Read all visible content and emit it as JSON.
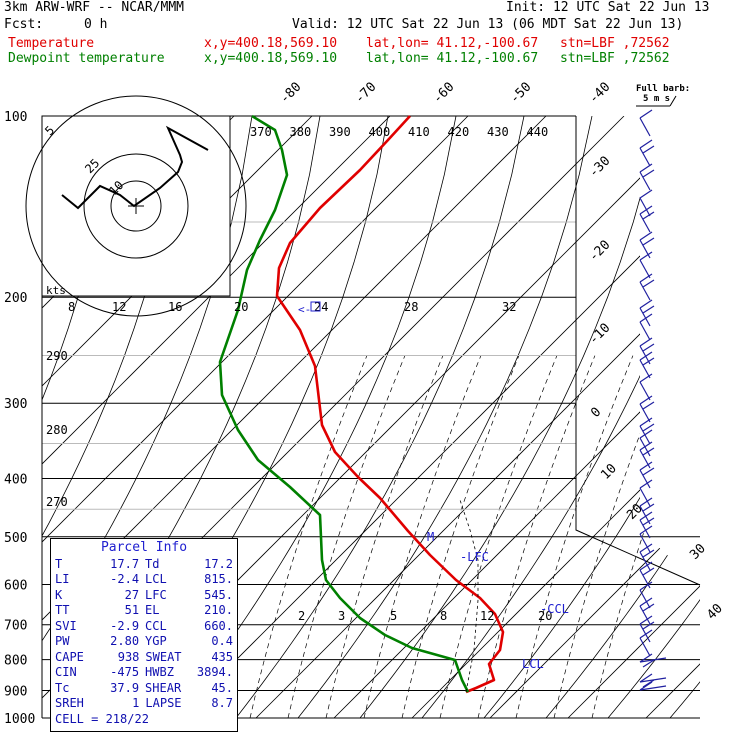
{
  "header": {
    "model": "3km ARW-WRF -- NCAR/MMM",
    "init": "Init: 12 UTC Sat 22 Jun 13",
    "fcst_label": "Fcst:",
    "fcst_value": "0 h",
    "valid": "Valid: 12 UTC Sat 22 Jun 13 (06 MDT Sat 22 Jun 13)",
    "temp_line": {
      "name": "Temperature",
      "xy": "x,y=400.18,569.10",
      "latlon": "lat,lon= 41.12,-100.67",
      "stn": "stn=LBF ,72562"
    },
    "dew_line": {
      "name": "Dewpoint temperature",
      "xy": "x,y=400.18,569.10",
      "latlon": "lat,lon= 41.12,-100.67",
      "stn": "stn=LBF ,72562"
    },
    "full_barb": "Full barb:",
    "full_barb_value": "5 m s"
  },
  "parcel": {
    "title": "Parcel Info",
    "rows": [
      [
        "T",
        "17.7",
        "Td",
        "17.2"
      ],
      [
        "LI",
        "-2.4",
        "LCL",
        "815."
      ],
      [
        "K",
        "27",
        "LFC",
        "545."
      ],
      [
        "TT",
        "51",
        "EL",
        "210."
      ],
      [
        "SVI",
        "-2.9",
        "CCL",
        "660."
      ],
      [
        "PW",
        "2.80",
        "YGP",
        "0.4"
      ],
      [
        "CAPE",
        "938",
        "SWEAT",
        "435"
      ],
      [
        "CIN",
        "-475",
        "HWBZ",
        "3894."
      ],
      [
        "Tc",
        "37.9",
        "SHEAR",
        "45."
      ],
      [
        "SREH",
        "1",
        "LAPSE",
        "8.7"
      ]
    ],
    "cell": "CELL = 218/22"
  },
  "labels": {
    "lfc": "-LFC",
    "ccl": "-CCL",
    "lcl": "LCL",
    "m": "M",
    "kts": "kts",
    "hodo_rings": [
      "5",
      "10",
      "25"
    ],
    "hodo_scale": [
      "8",
      "12",
      "16",
      "20",
      "24",
      "28",
      "32"
    ],
    "ptr": "<-"
  },
  "chart_data": {
    "type": "line",
    "title": "",
    "ylabel": "",
    "xlabel": "",
    "y_scale": "log-pressure (hPa)",
    "pressure_levels": [
      100,
      200,
      300,
      400,
      500,
      600,
      700,
      800,
      900,
      1000
    ],
    "isotherm_labels_top": [
      -80,
      -70,
      -60,
      -50,
      -40
    ],
    "isotherm_labels_right": [
      -30,
      -20,
      -10,
      0,
      10,
      20,
      30,
      40
    ],
    "theta_labels_top": [
      370,
      380,
      390,
      400,
      410,
      420,
      430,
      440
    ],
    "theta_labels_left": [
      290,
      280,
      270
    ],
    "mixing_ratio_labels": [
      2,
      3,
      5,
      8,
      12,
      20
    ],
    "series": [
      {
        "name": "Temperature",
        "color": "#e00000",
        "points": [
          [
            410,
            116
          ],
          [
            388,
            140
          ],
          [
            360,
            170
          ],
          [
            320,
            208
          ],
          [
            290,
            243
          ],
          [
            279,
            268
          ],
          [
            277,
            296
          ],
          [
            300,
            330
          ],
          [
            315,
            366
          ],
          [
            322,
            425
          ],
          [
            335,
            452
          ],
          [
            358,
            477
          ],
          [
            380,
            498
          ],
          [
            408,
            531
          ],
          [
            430,
            555
          ],
          [
            456,
            580
          ],
          [
            480,
            598
          ],
          [
            495,
            614
          ],
          [
            503,
            632
          ],
          [
            500,
            650
          ],
          [
            489,
            664
          ],
          [
            494,
            680
          ],
          [
            476,
            688
          ],
          [
            466,
            692
          ]
        ]
      },
      {
        "name": "Dewpoint temperature",
        "color": "#008000",
        "points": [
          [
            252,
            116
          ],
          [
            275,
            130
          ],
          [
            282,
            150
          ],
          [
            287,
            175
          ],
          [
            275,
            210
          ],
          [
            260,
            240
          ],
          [
            247,
            270
          ],
          [
            238,
            310
          ],
          [
            220,
            362
          ],
          [
            222,
            395
          ],
          [
            238,
            430
          ],
          [
            258,
            460
          ],
          [
            290,
            487
          ],
          [
            320,
            515
          ],
          [
            322,
            560
          ],
          [
            326,
            580
          ],
          [
            340,
            598
          ],
          [
            360,
            618
          ],
          [
            385,
            635
          ],
          [
            412,
            648
          ],
          [
            455,
            660
          ],
          [
            462,
            680
          ],
          [
            468,
            692
          ]
        ]
      }
    ],
    "hodograph": {
      "points": [
        [
          208,
          150
        ],
        [
          168,
          128
        ],
        [
          180,
          155
        ],
        [
          182,
          162
        ],
        [
          178,
          172
        ],
        [
          160,
          188
        ],
        [
          134,
          206
        ],
        [
          120,
          195
        ],
        [
          100,
          186
        ],
        [
          78,
          208
        ],
        [
          62,
          195
        ]
      ]
    },
    "wind_barbs_y": [
      118,
      148,
      172,
      198,
      214,
      240,
      260,
      282,
      308,
      322,
      346,
      360,
      382,
      404,
      426,
      438,
      450,
      470,
      488,
      506,
      520,
      534,
      552,
      570,
      590,
      606,
      624,
      638,
      662,
      682,
      690
    ]
  }
}
